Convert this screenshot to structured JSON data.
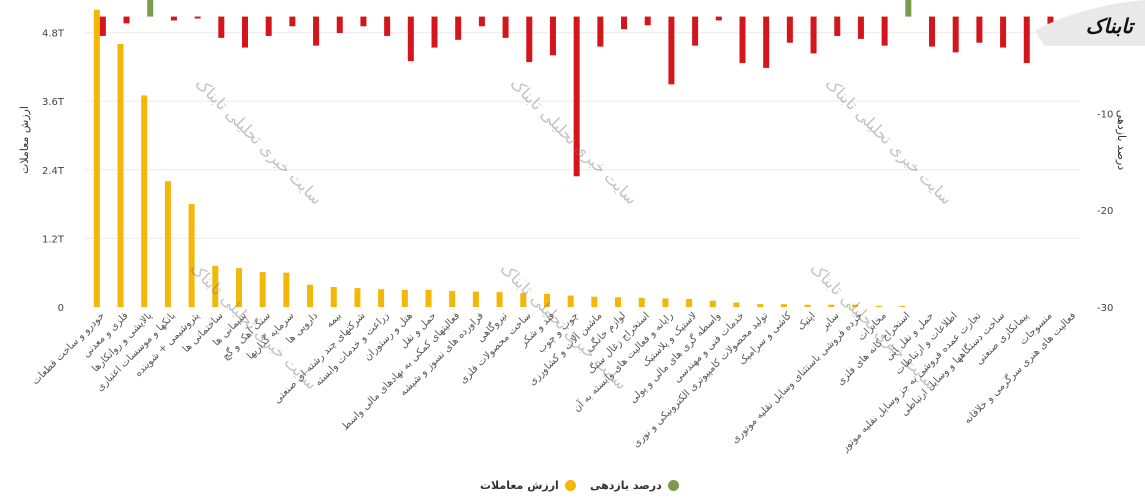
{
  "logo": {
    "text": "تابناک"
  },
  "legend": {
    "items": [
      {
        "label": "درصد بازدهی",
        "color": "#7a9a4d"
      },
      {
        "label": "ارزش معاملات",
        "color": "#f2b707"
      }
    ]
  },
  "watermark": {
    "text": "سایت خبری تحلیلی تابناک"
  },
  "chart_data": {
    "type": "bar",
    "ylabel_left": "ارزش معاملات",
    "ylabel_right": "درصد بازدهی",
    "left_ticks": [
      "0",
      "1.2T",
      "2.4T",
      "3.6T",
      "4.8T"
    ],
    "left_tick_values": [
      0,
      1.2,
      2.4,
      3.6,
      4.8
    ],
    "right_ticks": [
      "0",
      "-10",
      "-20",
      "-30"
    ],
    "right_tick_values": [
      0,
      -10,
      -20,
      -30
    ],
    "ylim_left": [
      0,
      5.3
    ],
    "ylim_right": [
      -30,
      1.3
    ],
    "categories": [
      "خودرو و ساخت قطعات",
      "فلزی و معدنی",
      "پالایشی و روانکارها",
      "بانکها و موسسات اعتباری",
      "پتروشیمی + شوینده",
      "ساختمانی ها",
      "سیمانی ها",
      "سنگ آهک و گچ",
      "سرمایه گذاریها",
      "دارویی ها",
      "بیمه",
      "شرکتهای چند رشته ای صنعتی",
      "زراعت و خدمات وابسته",
      "هتل و رستوران",
      "حمل و نقل",
      "فعالیتهای کمکی به نهادهای مالی واسط",
      "فراورده های نسوز و شیشه",
      "نیروگاهی",
      "ساخت محصولات فلزی",
      "قند و شکر",
      "چوب و چوب",
      "ماشین آلات و کشاورزی",
      "لوازم خانگی",
      "استخراج زغال سنگ",
      "رایانه و فعالیت های وابسته به آن",
      "لاستیک و پلاستیک",
      "واسطه گری های مالی و پولی",
      "خدمات فنی و مهندسی",
      "تولید محصولات کامپیوتری الکترونیکی و نوری",
      "کاشی و سرامیک",
      "اپتیک",
      "سایر",
      "خرده فروشی باستثنای وسایل نقلیه موتوری",
      "مخابرات",
      "استخراج کانه های فلزی",
      "حمل و نقل آبی",
      "اطلاعات و ارتباطات",
      "تجارت عمده فروشی به جز وسایل نقلیه موتور",
      "ساخت دستگاهها و وسایل ارتباطی",
      "پیمانکاری صنعتی",
      "منسوجات",
      "فعالیت های هنری سرگرمی و خلاقانه"
    ],
    "series": [
      {
        "name": "ارزش معاملات",
        "color": "#f2b707",
        "axis": "left",
        "values": [
          5.2,
          4.6,
          3.7,
          2.2,
          1.8,
          0.72,
          0.68,
          0.61,
          0.6,
          0.39,
          0.35,
          0.33,
          0.31,
          0.3,
          0.3,
          0.28,
          0.27,
          0.26,
          0.24,
          0.23,
          0.2,
          0.18,
          0.17,
          0.16,
          0.15,
          0.14,
          0.11,
          0.08,
          0.05,
          0.05,
          0.04,
          0.04,
          0.04,
          0.02,
          0.02,
          0.0,
          0.0,
          0.0,
          0.0,
          0.0,
          0.0,
          0.0
        ]
      },
      {
        "name": "درصد بازدهی",
        "color_positive": "#7a9a4d",
        "color_negative": "#d4151c",
        "axis": "right",
        "values": [
          -2.0,
          -0.7,
          1.8,
          -0.4,
          -0.2,
          -2.2,
          -3.2,
          -2.0,
          -1.0,
          -3.0,
          -1.7,
          -1.0,
          -2.0,
          -4.6,
          -3.2,
          -2.4,
          -1.0,
          -2.2,
          -4.7,
          -4.0,
          -16.5,
          -3.1,
          -1.3,
          -0.9,
          -7.0,
          -3.0,
          -0.4,
          -4.8,
          -5.3,
          -2.7,
          -3.8,
          -2.0,
          -2.3,
          -3.0,
          4.7,
          -3.1,
          -3.7,
          -2.7,
          -3.2,
          -4.8,
          -2.9,
          -2.0
        ]
      }
    ],
    "grid": true,
    "legend_position": "bottom-center"
  }
}
